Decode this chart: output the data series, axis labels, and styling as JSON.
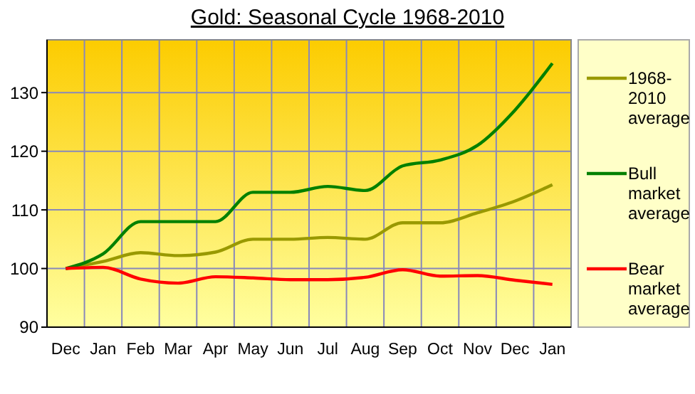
{
  "chart_data": {
    "type": "line",
    "title": "Gold: Seasonal Cycle 1968-2010",
    "categories": [
      "Dec",
      "Jan",
      "Feb",
      "Mar",
      "Apr",
      "May",
      "Jun",
      "Jul",
      "Aug",
      "Sep",
      "Oct",
      "Nov",
      "Dec",
      "Jan"
    ],
    "series": [
      {
        "name": "1968-2010 average",
        "color": "#999900",
        "values": [
          100,
          101.2,
          102.7,
          102.2,
          102.8,
          105,
          105,
          105.3,
          105,
          107.8,
          107.8,
          109.5,
          111.5,
          114.3
        ]
      },
      {
        "name": "Bull market average",
        "color": "#008000",
        "values": [
          100,
          102.5,
          108,
          108,
          108,
          113,
          113,
          114,
          113.3,
          117.5,
          118.5,
          121,
          127,
          135
        ]
      },
      {
        "name": "Bear market average",
        "color": "#ff0000",
        "values": [
          100,
          100.2,
          98.2,
          97.5,
          98.6,
          98.4,
          98.1,
          98.1,
          98.5,
          99.8,
          98.7,
          98.8,
          98,
          97.3
        ]
      }
    ],
    "ylim": [
      90,
      139
    ],
    "yticks": [
      90,
      100,
      110,
      120,
      130
    ],
    "grid": true,
    "legend": "right",
    "marker": "none",
    "line_style": "solid"
  }
}
